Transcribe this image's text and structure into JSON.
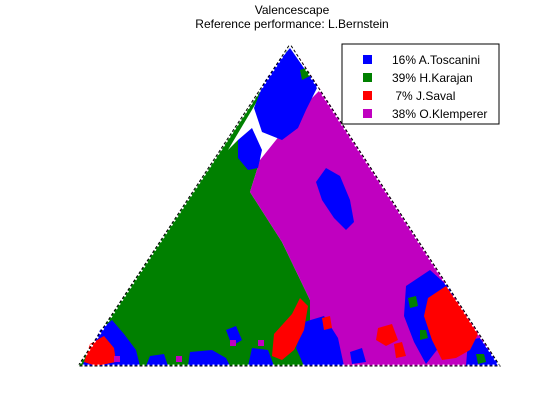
{
  "chart_data": {
    "type": "heatmap",
    "subtype": "ternary-valence-map",
    "title": "Valencescape",
    "subtitle": "Reference performance: L.Bernstein",
    "legend_position": "top-right",
    "legend": [
      {
        "label": "16% A.Toscanini",
        "percent": 16,
        "name": "A.Toscanini",
        "color": "#0000ff"
      },
      {
        "label": "39% H.Karajan",
        "percent": 39,
        "name": "H.Karajan",
        "color": "#008000"
      },
      {
        "label": " 7% J.Saval",
        "percent": 7,
        "name": "J.Saval",
        "color": "#ff0000"
      },
      {
        "label": "38% O.Klemperer",
        "percent": 38,
        "name": "O.Klemperer",
        "color": "#c000c0"
      }
    ]
  }
}
